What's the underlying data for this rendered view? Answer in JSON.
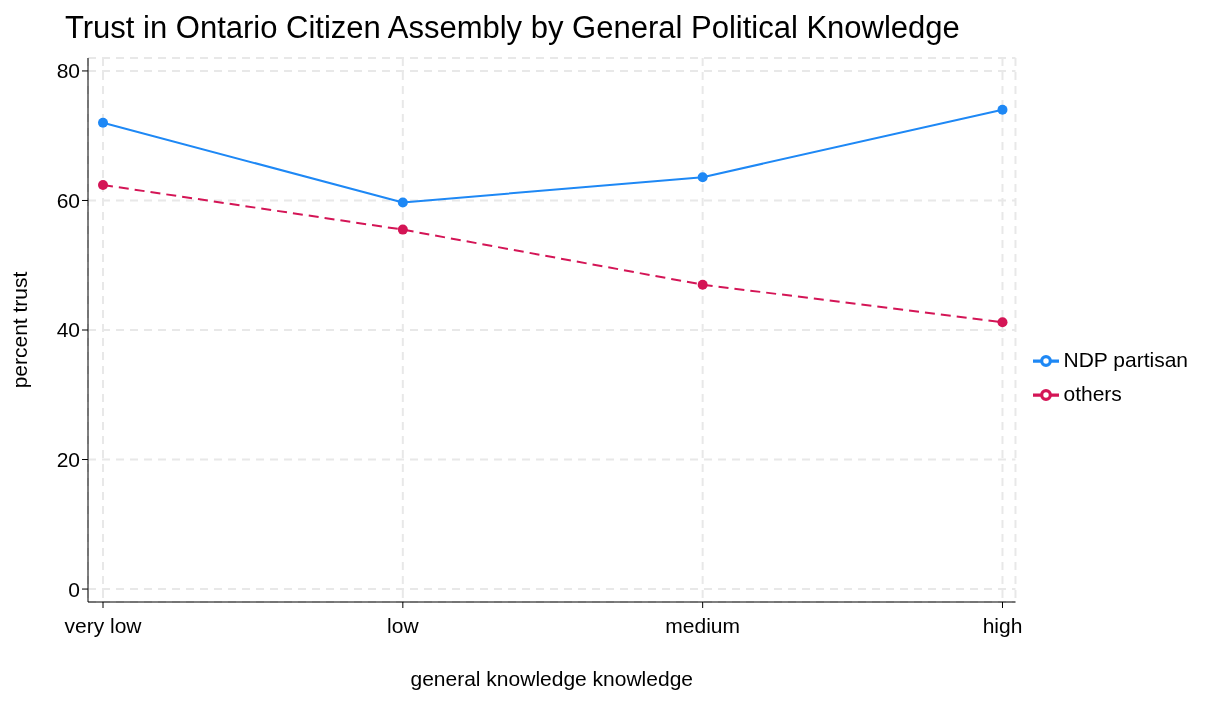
{
  "chart_data": {
    "type": "line",
    "title": "Trust in Ontario Citizen Assembly by General Political Knowledge",
    "xlabel": "general knowledge knowledge",
    "ylabel": "percent trust",
    "categories": [
      "very low",
      "low",
      "medium",
      "high"
    ],
    "series": [
      {
        "name": "NDP partisan",
        "color": "#1e88f5",
        "values": [
          72,
          59.7,
          63.6,
          74
        ],
        "line_style": "solid"
      },
      {
        "name": "others",
        "color": "#d41556",
        "values": [
          62.4,
          55.5,
          47,
          41.2
        ],
        "line_style": "dashed"
      }
    ],
    "ylim": [
      -2,
      82
    ],
    "yticks": [
      0,
      20,
      40,
      60,
      80
    ],
    "grid": true,
    "legend": "right",
    "marker": "circle"
  }
}
